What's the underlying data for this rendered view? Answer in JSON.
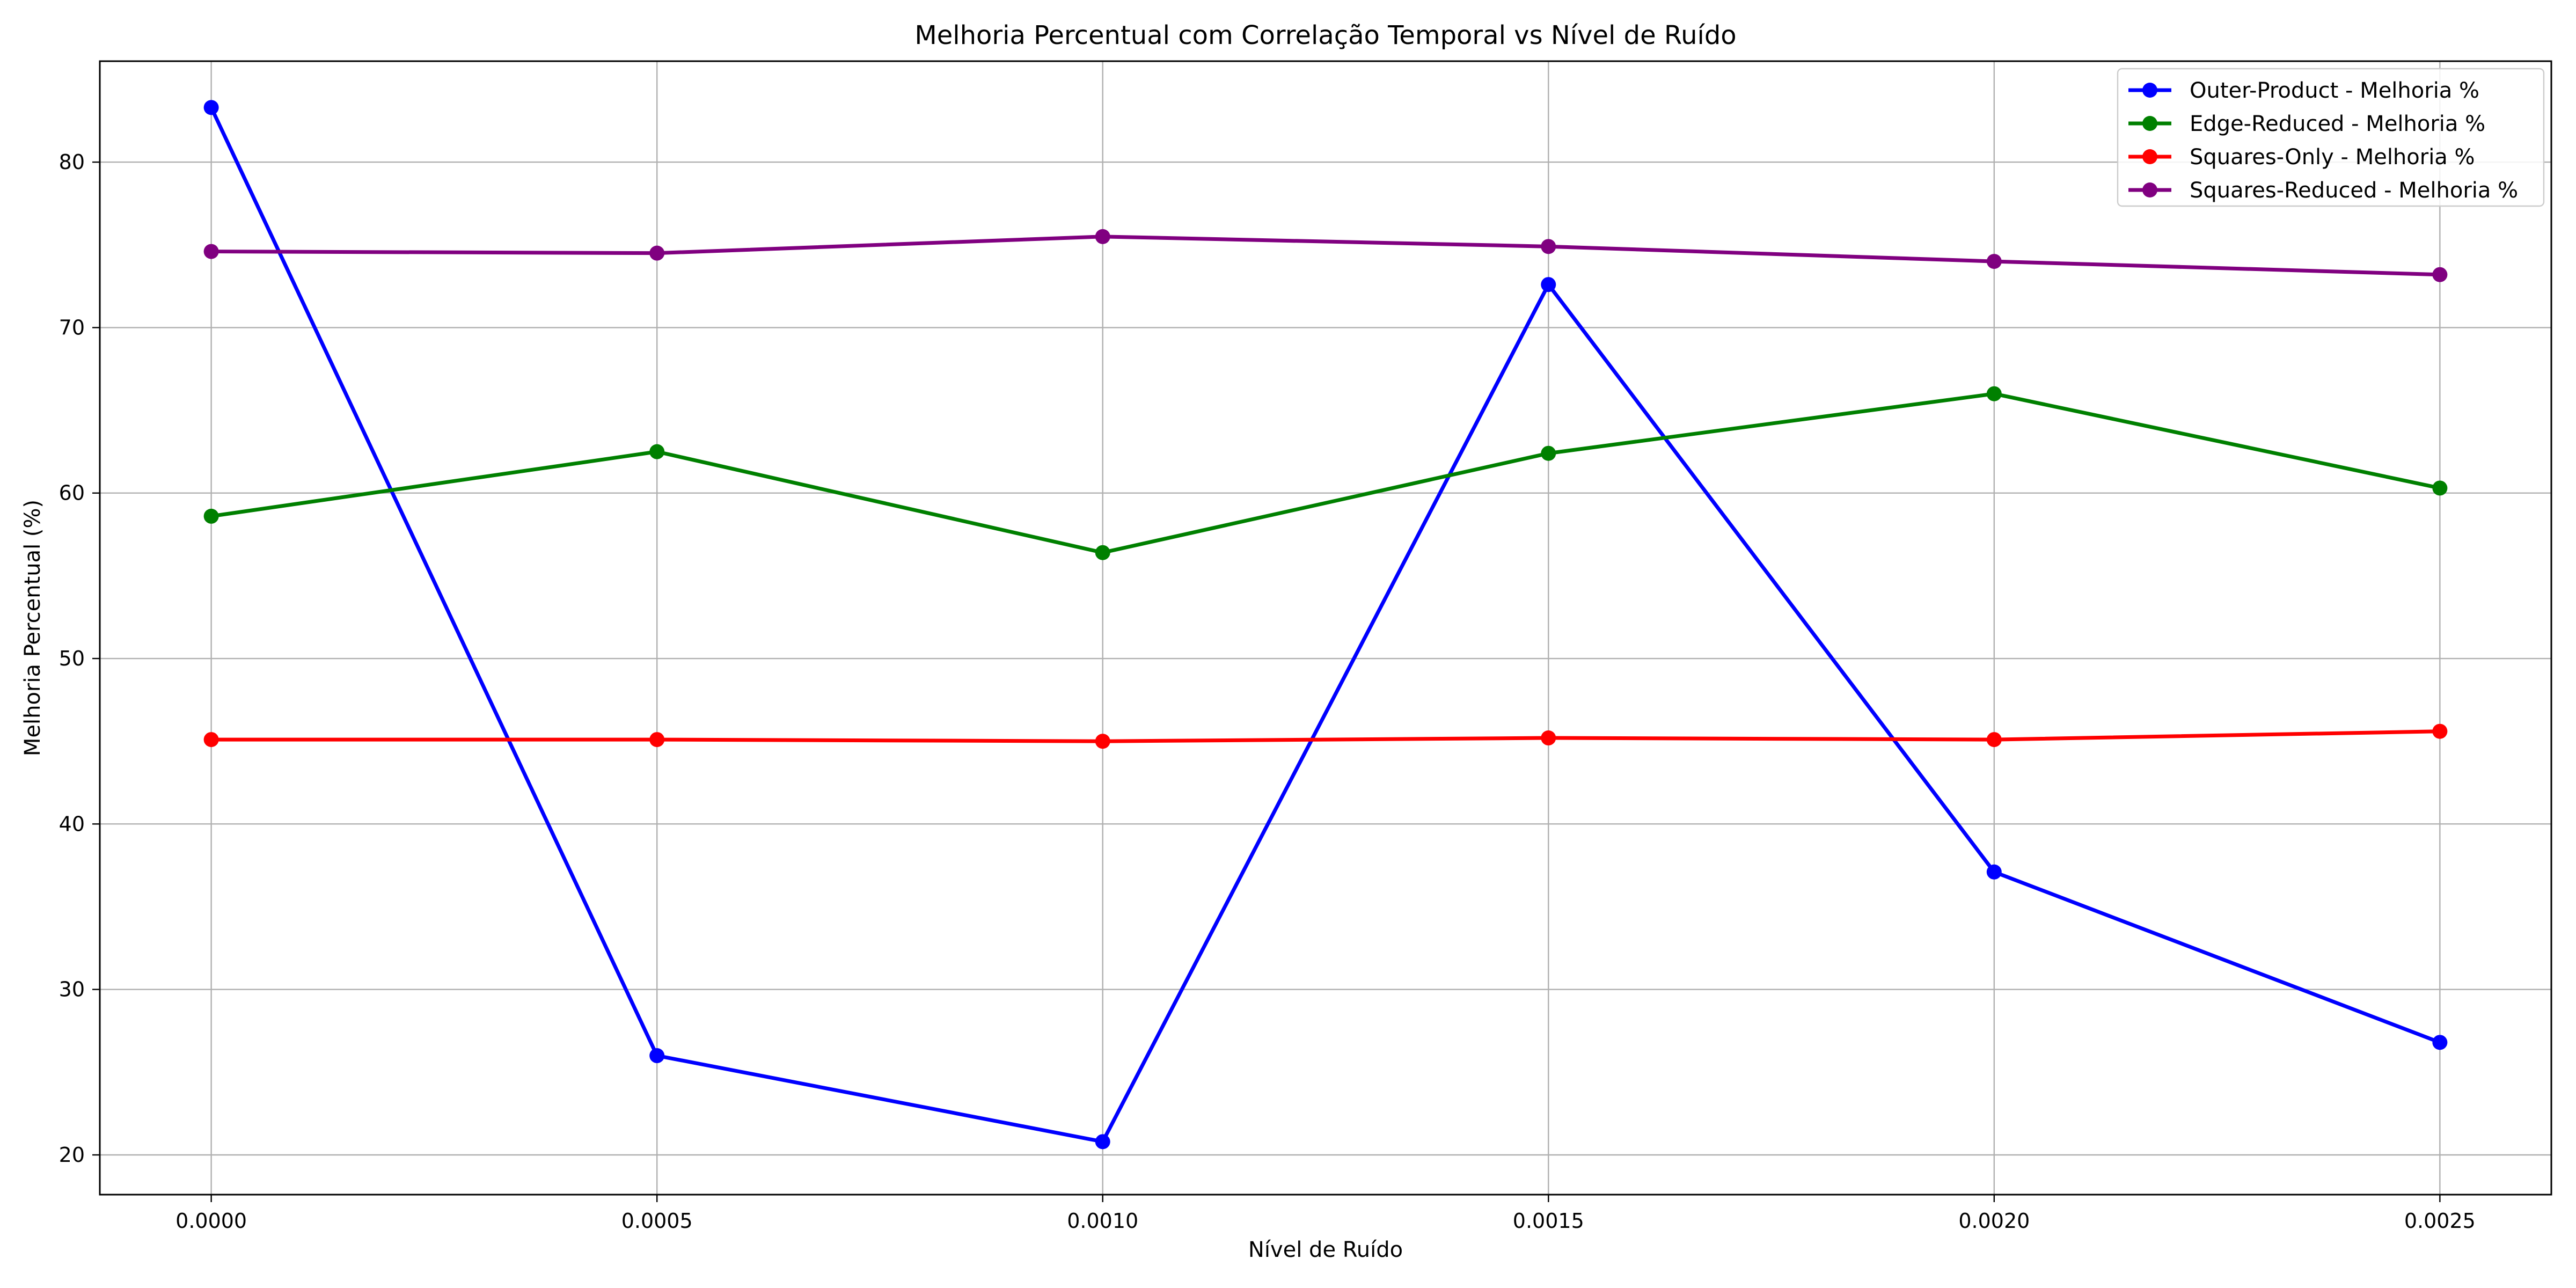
{
  "chart_data": {
    "type": "line",
    "title": "Melhoria Percentual com Correlação Temporal vs Nível de Ruído",
    "xlabel": "Nível de Ruído",
    "ylabel": "Melhoria Percentual (%)",
    "x": [
      0.0,
      0.0005,
      0.001,
      0.0015,
      0.002,
      0.0025
    ],
    "x_tick_labels": [
      "0.0000",
      "0.0005",
      "0.0010",
      "0.0015",
      "0.0020",
      "0.0025"
    ],
    "y_ticks": [
      20,
      30,
      40,
      50,
      60,
      70,
      80
    ],
    "xlim": [
      -0.000125,
      0.002625
    ],
    "ylim": [
      17.6,
      86.1
    ],
    "grid": true,
    "legend_position": "top-right",
    "series": [
      {
        "name": "Outer-Product - Melhoria %",
        "color": "#0000ff",
        "values": [
          83.3,
          26.0,
          20.8,
          72.6,
          37.1,
          26.8
        ]
      },
      {
        "name": "Edge-Reduced - Melhoria %",
        "color": "#008000",
        "values": [
          58.6,
          62.5,
          56.4,
          62.4,
          66.0,
          60.3
        ]
      },
      {
        "name": "Squares-Only - Melhoria %",
        "color": "#ff0000",
        "values": [
          45.1,
          45.1,
          45.0,
          45.2,
          45.1,
          45.6
        ]
      },
      {
        "name": "Squares-Reduced - Melhoria %",
        "color": "#800080",
        "values": [
          74.6,
          74.5,
          75.5,
          74.9,
          74.0,
          73.2
        ]
      }
    ]
  }
}
